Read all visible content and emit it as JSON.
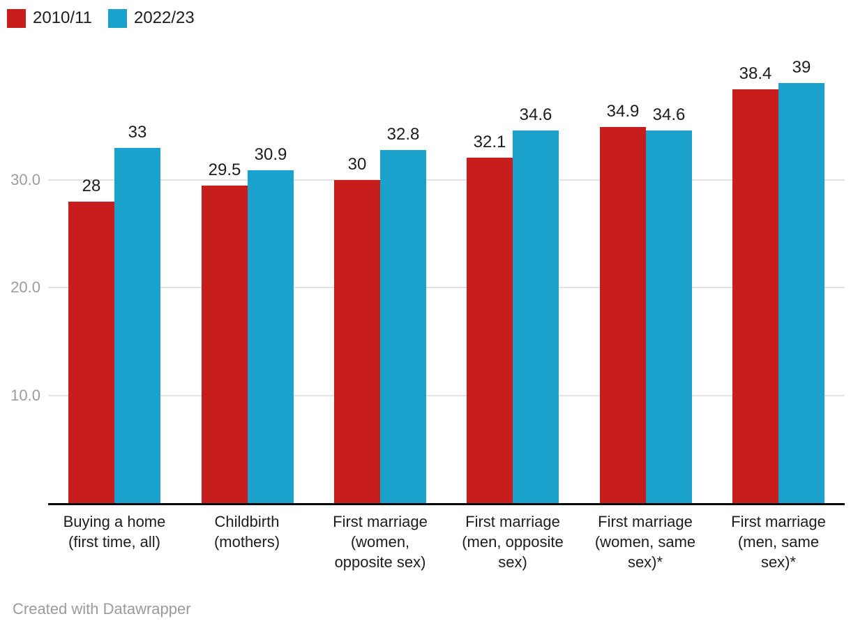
{
  "style": {
    "background": "#ffffff",
    "gridline_color": "#e2e2e2",
    "axis_line_color": "#000000",
    "tick_label_color": "#9c9c9c",
    "text_color": "#1d1d1d",
    "footer_color": "#9b9b9b"
  },
  "footer": {
    "credit": "Created with Datawrapper"
  },
  "chart_data": {
    "type": "bar",
    "title": "",
    "categories": [
      "Buying a home\n(first time, all)",
      "Childbirth\n(mothers)",
      "First marriage\n(women,\nopposite sex)",
      "First marriage\n(men, opposite\nsex)",
      "First marriage\n(women, same\nsex)*",
      "First marriage\n(men, same\nsex)*"
    ],
    "series": [
      {
        "name": "2010/11",
        "color": "#c71e1d",
        "values": [
          28,
          29.5,
          30,
          32.1,
          34.9,
          38.4
        ]
      },
      {
        "name": "2022/23",
        "color": "#1aa2cd",
        "values": [
          33,
          30.9,
          32.8,
          34.6,
          34.6,
          39
        ]
      }
    ],
    "yticks": [
      {
        "value": 10,
        "label": "10.0"
      },
      {
        "value": 20,
        "label": "20.0"
      },
      {
        "value": 30,
        "label": "30.0"
      }
    ],
    "ylim": [
      0,
      40
    ],
    "grid": true,
    "value_labels_shown": true,
    "legend_position": "top-left",
    "xlabel": "",
    "ylabel": ""
  }
}
